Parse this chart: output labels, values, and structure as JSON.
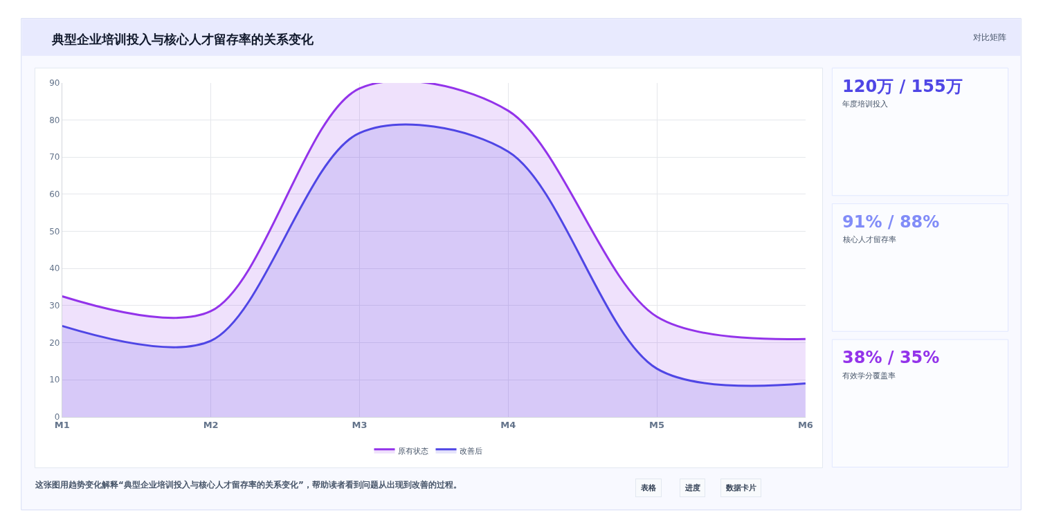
{
  "chart_data": [
    {
      "type": "area",
      "title": "典型企业培训投入与核心人才留存率的关系变化",
      "categories": [
        "M1",
        "M2",
        "M3",
        "M4",
        "M5",
        "M6"
      ],
      "ylim": [
        0,
        90
      ],
      "yticks": [
        0,
        10,
        20,
        30,
        40,
        50,
        60,
        70,
        80,
        90
      ],
      "grid": true,
      "legend": "bottom",
      "marker": "none",
      "line_style": "solid",
      "series": [
        {
          "name": "原有状态",
          "color": "#9333ea",
          "values": [
            32.5,
            28.5,
            88.5,
            82.5,
            27,
            21
          ]
        },
        {
          "name": "改善后",
          "color": "#4f46e5",
          "values": [
            24.5,
            20.5,
            76.5,
            71.5,
            13,
            9
          ]
        }
      ],
      "annotations": [
        "对比矩阵",
        "这张图用趋势变化解释“典型企业培训投入与核心人才留存率的关系变化”，帮助读者看到问题从出现到改善的过程。",
        "表格",
        "进度",
        "数据卡片"
      ]
    },
    {
      "type": "other",
      "title": "120万 / 155万",
      "subtitle": "年度培训投入",
      "color": "#4f46e5"
    },
    {
      "type": "other",
      "title": "91% / 88%",
      "subtitle": "核心人才留存率",
      "color": "#818cf8"
    },
    {
      "type": "other",
      "title": "38% / 35%",
      "subtitle": "有效学分覆盖率",
      "color": "#9333ea"
    }
  ]
}
